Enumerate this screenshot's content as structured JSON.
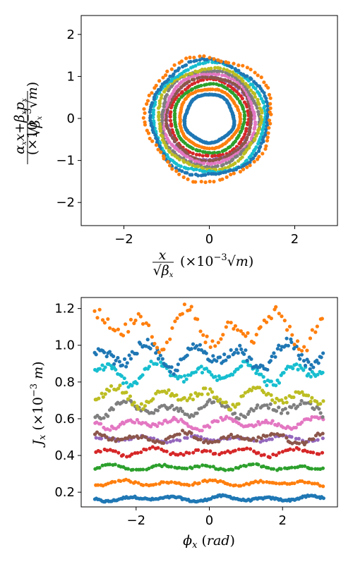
{
  "chart_data": [
    {
      "type": "scatter",
      "xlabel": "x/√βx (×10⁻³√m)",
      "ylabel": "(αx x + βx px)/√βx (×10⁻³√m)",
      "xlim": [
        -3.0,
        3.0
      ],
      "ylim": [
        -2.55,
        2.45
      ],
      "xticks": [
        -2,
        0,
        2
      ],
      "yticks": [
        -2,
        -1,
        0,
        1,
        2
      ],
      "tick_labels_x": [
        "−2",
        "0",
        "2"
      ],
      "tick_labels_y": [
        "−2",
        "−1",
        "0",
        "1",
        "2"
      ],
      "grid": false,
      "series": [
        {
          "color": "#1f77b4",
          "J": 0.165,
          "amp": 0.01,
          "n": 160
        },
        {
          "color": "#ff7f0e",
          "J": 0.25,
          "amp": 0.01,
          "n": 90
        },
        {
          "color": "#2ca02c",
          "J": 0.335,
          "amp": 0.01,
          "n": 90
        },
        {
          "color": "#d62728",
          "J": 0.42,
          "amp": 0.015,
          "n": 80
        },
        {
          "color": "#9467bd",
          "J": 0.49,
          "amp": 0.01,
          "n": 70
        },
        {
          "color": "#8c564b",
          "J": 0.495,
          "amp": 0.02,
          "n": 100
        },
        {
          "color": "#e377c2",
          "J": 0.575,
          "amp": 0.02,
          "n": 110
        },
        {
          "color": "#7f7f7f",
          "J": 0.655,
          "amp": 0.03,
          "n": 110
        },
        {
          "color": "#bcbd22",
          "J": 0.72,
          "amp": 0.035,
          "n": 110
        },
        {
          "color": "#17becf",
          "J": 0.85,
          "amp": 0.04,
          "n": 130
        },
        {
          "color": "#1f77b4",
          "J": 0.94,
          "amp": 0.05,
          "n": 140
        },
        {
          "color": "#ff7f0e",
          "J": 1.09,
          "amp": 0.07,
          "n": 90
        }
      ]
    },
    {
      "type": "scatter",
      "xlabel": "φx (rad)",
      "ylabel": "Jx (×10⁻³ m)",
      "xlim": [
        -3.5,
        3.5
      ],
      "ylim": [
        0.12,
        1.26
      ],
      "xticks": [
        -2,
        0,
        2
      ],
      "yticks": [
        0.2,
        0.4,
        0.6,
        0.8,
        1.0,
        1.2
      ],
      "tick_labels_x": [
        "−2",
        "0",
        "2"
      ],
      "tick_labels_y": [
        "0.2",
        "0.4",
        "0.6",
        "0.8",
        "1.0",
        "1.2"
      ],
      "grid": false
    }
  ]
}
